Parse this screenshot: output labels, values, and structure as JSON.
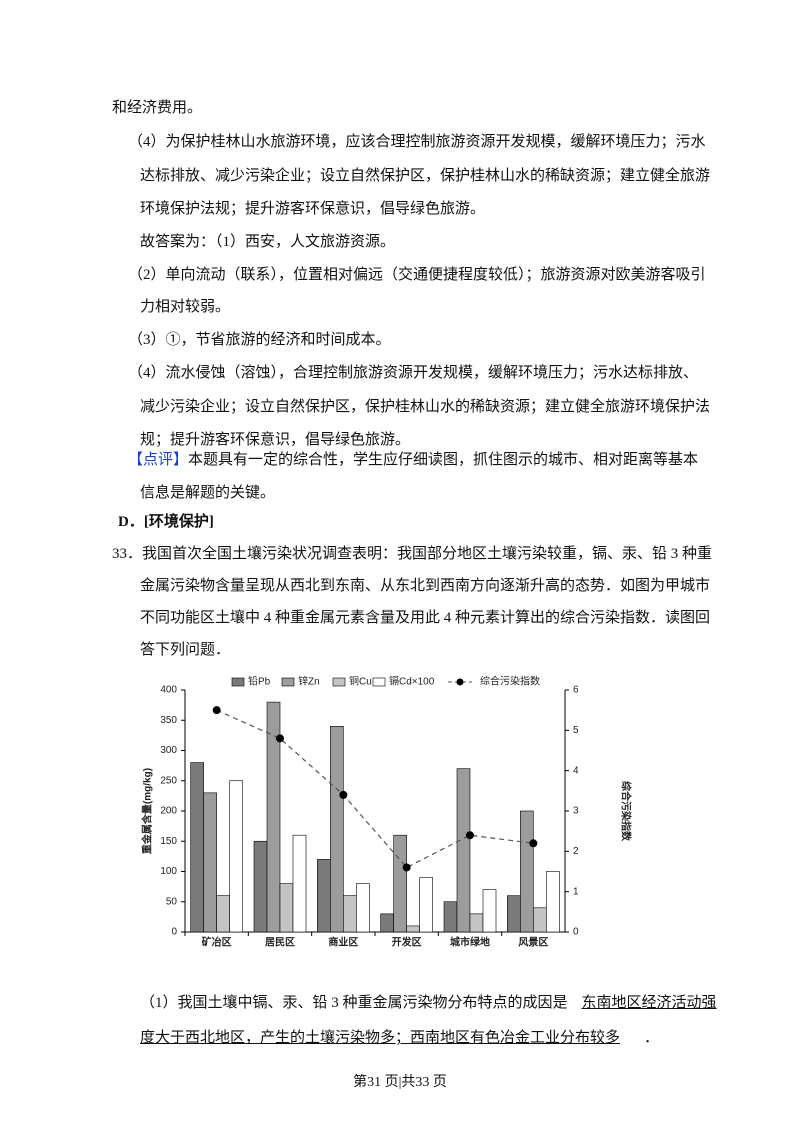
{
  "lines": [
    "和经济费用。",
    "（4）为保护桂林山水旅游环境，应该合理控制旅游资源开发规模，缓解环境压力；污水",
    "达标排放、减少污染企业；设立自然保护区，保护桂林山水的稀缺资源；建立健全旅游",
    "环境保护法规；提升游客环保意识，倡导绿色旅游。",
    "故答案为：（1）西安，人文旅游资源。",
    "（2）单向流动（联系），位置相对偏远（交通便捷程度较低）；旅游资源对欧美游客吸引",
    "力相对较弱。",
    "（3）①，节省旅游的经济和时间成本。",
    "（4）流水侵蚀（溶蚀），合理控制旅游资源开发规模，缓解环境压力；污水达标排放、",
    "减少污染企业；设立自然保护区，保护桂林山水的稀缺资源；建立健全旅游环境保护法",
    "规；提升游客环保意识，倡导绿色旅游。"
  ],
  "review": {
    "label": "【点评】",
    "lines": [
      "本题具有一定的综合性，学生应仔细读图，抓住图示的城市、相对距离等基本",
      "信息是解题的关键。"
    ]
  },
  "section": "D．[环境保护]",
  "question": [
    "33．我国首次全国土壤污染状况调查表明：我国部分地区土壤污染较重，镉、汞、铅 3 种重",
    "金属污染物含量呈现从西北到东南、从东北到西南方向逐渐升高的态势．如图为甲城市",
    "不同功能区土壤中 4 种重金属元素含量及用此 4 种元素计算出的综合污染指数．读图回",
    "答下列问题．"
  ],
  "chart_data": {
    "type": "bar-line",
    "categories": [
      "矿冶区",
      "居民区",
      "商业区",
      "开发区",
      "城市绿地",
      "风景区"
    ],
    "ylabel": "重金属含量(mg/kg)",
    "y2label": "综合污染指数",
    "ylim": [
      0,
      400
    ],
    "yticks": [
      0,
      50,
      100,
      150,
      200,
      250,
      300,
      350,
      400
    ],
    "y2lim": [
      0,
      6
    ],
    "y2ticks": [
      0,
      1,
      2,
      3,
      4,
      5,
      6
    ],
    "series": [
      {
        "name": "铅Pb",
        "color": "#7a7a7a",
        "values": [
          280,
          150,
          120,
          30,
          50,
          60
        ]
      },
      {
        "name": "锌Zn",
        "color": "#9c9c9c",
        "values": [
          230,
          380,
          340,
          160,
          270,
          200
        ]
      },
      {
        "name": "铜Cu",
        "color": "#c4c4c4",
        "values": [
          60,
          80,
          60,
          10,
          30,
          40
        ]
      },
      {
        "name": "镉Cd×100",
        "color": "#ffffff",
        "values": [
          250,
          160,
          80,
          90,
          70,
          100
        ]
      },
      {
        "name": "综合污染指数",
        "color": "#000000",
        "axis": "y2",
        "values": [
          5.5,
          4.8,
          3.4,
          1.6,
          2.4,
          2.2
        ]
      }
    ]
  },
  "answer": {
    "prefix": "（1）我国土壤中镉、汞、铅 3 种重金属污染物分布特点的成因是",
    "underlined": [
      "东南地区经济活动强",
      "度大于西北地区，产生的土壤污染物多；西南地区有色冶金工业分布较多"
    ],
    "suffix": "．"
  },
  "footer": "第31 页|共33 页"
}
